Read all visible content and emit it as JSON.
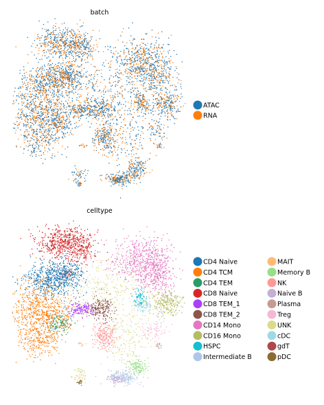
{
  "chart_data": [
    {
      "type": "scatter",
      "title": "batch",
      "legend_position": "right",
      "grid": false,
      "axes_visible": false,
      "series": [
        {
          "name": "ATAC",
          "color": "#1f77b4"
        },
        {
          "name": "RNA",
          "color": "#ff7f0e"
        }
      ]
    },
    {
      "type": "scatter",
      "title": "celltype",
      "legend_position": "right",
      "grid": false,
      "axes_visible": false,
      "series": [
        {
          "name": "CD4 Naive",
          "color": "#1f77b4"
        },
        {
          "name": "CD4 TCM",
          "color": "#ff7f0e"
        },
        {
          "name": "CD4 TEM",
          "color": "#279e68"
        },
        {
          "name": "CD8 Naive",
          "color": "#d62728"
        },
        {
          "name": "CD8 TEM_1",
          "color": "#aa40fc"
        },
        {
          "name": "CD8 TEM_2",
          "color": "#8c564b"
        },
        {
          "name": "CD14 Mono",
          "color": "#e377c2"
        },
        {
          "name": "CD16 Mono",
          "color": "#b5bd61"
        },
        {
          "name": "HSPC",
          "color": "#17becf"
        },
        {
          "name": "Intermediate B",
          "color": "#aec7e8"
        },
        {
          "name": "MAIT",
          "color": "#ffbb78"
        },
        {
          "name": "Memory B",
          "color": "#98df8a"
        },
        {
          "name": "NK",
          "color": "#ff9896"
        },
        {
          "name": "Naive B",
          "color": "#c5b0d5"
        },
        {
          "name": "Plasma",
          "color": "#c49c94"
        },
        {
          "name": "Treg",
          "color": "#f7b6d2"
        },
        {
          "name": "UNK",
          "color": "#dbdb8d"
        },
        {
          "name": "cDC",
          "color": "#9edae5"
        },
        {
          "name": "gdT",
          "color": "#ad494a"
        },
        {
          "name": "pDC",
          "color": "#8c6d31"
        }
      ]
    }
  ]
}
